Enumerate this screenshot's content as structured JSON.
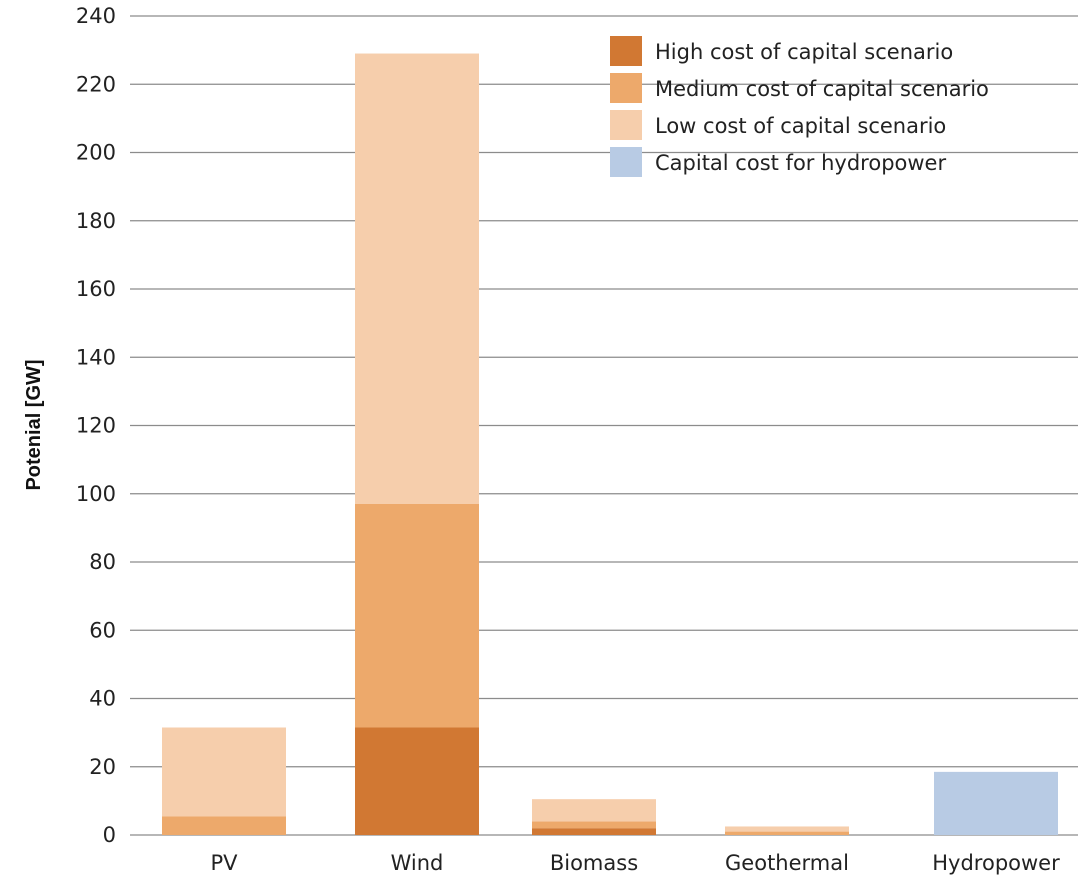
{
  "chart_data": {
    "type": "bar",
    "stacked": true,
    "title": "",
    "xlabel": "",
    "ylabel": "Potenial [GW]",
    "ylim": [
      0,
      240
    ],
    "yticks": [
      0,
      20,
      40,
      60,
      80,
      100,
      120,
      140,
      160,
      180,
      200,
      220,
      240
    ],
    "grid": true,
    "legend_position": "top-right",
    "categories": [
      "PV",
      "Wind",
      "Biomass",
      "Geothermal",
      "Hydropower"
    ],
    "series": [
      {
        "name": "High cost of capital scenario",
        "color": "#d17833",
        "values": [
          0,
          31.5,
          2,
          0,
          0
        ]
      },
      {
        "name": "Medium cost of capital scenario",
        "color": "#eda96b",
        "values": [
          5.5,
          65.5,
          2,
          1,
          0
        ]
      },
      {
        "name": "Low cost of capital scenario",
        "color": "#f6ceac",
        "values": [
          26,
          132,
          6.5,
          1.5,
          0
        ]
      },
      {
        "name": "Capital cost for hydropower",
        "color": "#b8cbe4",
        "values": [
          0,
          0,
          0,
          0,
          18.5
        ]
      }
    ]
  }
}
